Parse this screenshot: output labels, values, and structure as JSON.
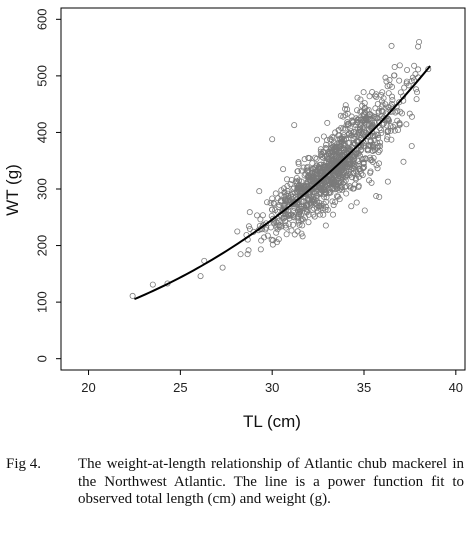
{
  "chart_data": {
    "type": "scatter",
    "xlabel": "TL (cm)",
    "ylabel": "WT (g)",
    "xlim": [
      18.5,
      40.5
    ],
    "ylim": [
      -20,
      620
    ],
    "xticks": [
      20,
      25,
      30,
      35,
      40
    ],
    "yticks": [
      0,
      100,
      200,
      300,
      400,
      500,
      600
    ],
    "grid": false,
    "marker": "open-circle",
    "marker_color": "#7a7a7a",
    "line_color": "#000000",
    "fit": {
      "model": "power",
      "a": 0.0108,
      "b": 2.95,
      "x_range": [
        22.5,
        38.6
      ]
    },
    "labeled_points": [
      {
        "x": 22.4,
        "y": 111
      },
      {
        "x": 23.5,
        "y": 131
      },
      {
        "x": 24.3,
        "y": 133
      },
      {
        "x": 26.1,
        "y": 146
      },
      {
        "x": 26.3,
        "y": 173
      },
      {
        "x": 27.3,
        "y": 161
      },
      {
        "x": 30.0,
        "y": 388
      },
      {
        "x": 31.2,
        "y": 413
      },
      {
        "x": 36.3,
        "y": 313
      },
      {
        "x": 36.5,
        "y": 553
      },
      {
        "x": 37.8,
        "y": 503
      },
      {
        "x": 38.0,
        "y": 560
      },
      {
        "x": 38.5,
        "y": 512
      },
      {
        "x": 37.6,
        "y": 376
      }
    ],
    "cloud": {
      "n": 1150,
      "x_center": 33.4,
      "x_sd": 1.75,
      "x_range": [
        26.2,
        38.0
      ],
      "residual_sd_fraction": 0.09
    }
  },
  "caption": {
    "label": "Fig 4.",
    "text": "The weight-at-length relationship of Atlantic chub mackerel in the Northwest Atlantic. The line is a power function fit to observed total length (cm) and weight (g)."
  }
}
